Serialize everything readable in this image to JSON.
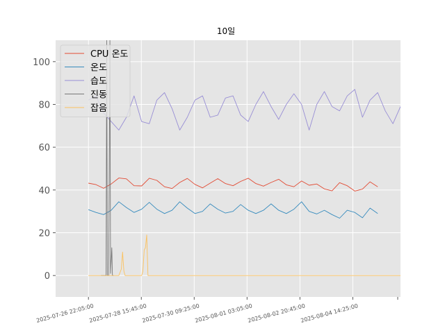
{
  "chart_data": {
    "type": "line",
    "title": "10일",
    "xlabel": "",
    "ylabel": "",
    "x_range": [
      "2025-07-25T20:13:00",
      "2025-08-06T04:00:00"
    ],
    "ylim": [
      -10,
      110
    ],
    "y_ticks": [
      0,
      20,
      40,
      60,
      80,
      100
    ],
    "x_ticks": [
      {
        "time": "2025-07-26T22:05:00",
        "label": "2025-07-26 22:05:00"
      },
      {
        "time": "2025-07-28T15:45:00",
        "label": "2025-07-28 15:45:00"
      },
      {
        "time": "2025-07-30T09:25:00",
        "label": "2025-07-30 09:25:00"
      },
      {
        "time": "2025-08-01T03:05:00",
        "label": "2025-08-01 03:05:00"
      },
      {
        "time": "2025-08-02T20:45:00",
        "label": "2025-08-02 20:45:00"
      },
      {
        "time": "2025-08-04T14:25:00",
        "label": "2025-08-04 14:25:00"
      }
    ],
    "grid": true,
    "legend_position": "top-left",
    "series": [
      {
        "name": "CPU 온도",
        "color": "#e24a33",
        "points": [
          [
            "2025-07-26T22:00:00",
            43.2
          ],
          [
            "2025-07-27T04:00:00",
            42.5
          ],
          [
            "2025-07-27T10:00:00",
            40.8
          ],
          [
            "2025-07-27T16:00:00",
            42.8
          ],
          [
            "2025-07-27T22:00:00",
            45.6
          ],
          [
            "2025-07-28T04:00:00",
            45.2
          ],
          [
            "2025-07-28T10:00:00",
            42.0
          ],
          [
            "2025-07-28T16:00:00",
            41.9
          ],
          [
            "2025-07-28T22:00:00",
            45.5
          ],
          [
            "2025-07-29T04:00:00",
            44.5
          ],
          [
            "2025-07-29T10:00:00",
            41.5
          ],
          [
            "2025-07-29T16:00:00",
            40.7
          ],
          [
            "2025-07-29T22:00:00",
            43.5
          ],
          [
            "2025-07-30T04:00:00",
            45.4
          ],
          [
            "2025-07-30T10:00:00",
            42.6
          ],
          [
            "2025-07-30T16:00:00",
            41.0
          ],
          [
            "2025-07-30T22:00:00",
            43.2
          ],
          [
            "2025-07-31T04:00:00",
            45.3
          ],
          [
            "2025-07-31T10:00:00",
            43.0
          ],
          [
            "2025-07-31T16:00:00",
            42.0
          ],
          [
            "2025-07-31T22:00:00",
            44.0
          ],
          [
            "2025-08-01T04:00:00",
            45.5
          ],
          [
            "2025-08-01T10:00:00",
            43.0
          ],
          [
            "2025-08-01T16:00:00",
            41.8
          ],
          [
            "2025-08-01T22:00:00",
            43.5
          ],
          [
            "2025-08-02T04:00:00",
            45.0
          ],
          [
            "2025-08-02T10:00:00",
            42.4
          ],
          [
            "2025-08-02T16:00:00",
            41.5
          ],
          [
            "2025-08-02T22:00:00",
            44.2
          ],
          [
            "2025-08-03T04:00:00",
            42.2
          ],
          [
            "2025-08-03T10:00:00",
            42.8
          ],
          [
            "2025-08-03T16:00:00",
            40.5
          ],
          [
            "2025-08-03T22:00:00",
            39.6
          ],
          [
            "2025-08-04T04:00:00",
            43.4
          ],
          [
            "2025-08-04T10:00:00",
            42.0
          ],
          [
            "2025-08-04T16:00:00",
            39.5
          ],
          [
            "2025-08-04T22:00:00",
            40.4
          ],
          [
            "2025-08-05T04:00:00",
            43.8
          ],
          [
            "2025-08-05T10:00:00",
            41.5
          ]
        ]
      },
      {
        "name": "온도",
        "color": "#348abd",
        "points": [
          [
            "2025-07-26T22:00:00",
            30.8
          ],
          [
            "2025-07-27T04:00:00",
            29.5
          ],
          [
            "2025-07-27T10:00:00",
            28.5
          ],
          [
            "2025-07-27T16:00:00",
            30.5
          ],
          [
            "2025-07-27T22:00:00",
            34.5
          ],
          [
            "2025-07-28T04:00:00",
            31.8
          ],
          [
            "2025-07-28T10:00:00",
            29.5
          ],
          [
            "2025-07-28T16:00:00",
            31.0
          ],
          [
            "2025-07-28T22:00:00",
            34.2
          ],
          [
            "2025-07-29T04:00:00",
            31.0
          ],
          [
            "2025-07-29T10:00:00",
            29.0
          ],
          [
            "2025-07-29T16:00:00",
            30.5
          ],
          [
            "2025-07-29T22:00:00",
            34.5
          ],
          [
            "2025-07-30T04:00:00",
            31.5
          ],
          [
            "2025-07-30T10:00:00",
            29.0
          ],
          [
            "2025-07-30T16:00:00",
            30.0
          ],
          [
            "2025-07-30T22:00:00",
            33.5
          ],
          [
            "2025-07-31T04:00:00",
            31.0
          ],
          [
            "2025-07-31T10:00:00",
            29.2
          ],
          [
            "2025-07-31T16:00:00",
            30.0
          ],
          [
            "2025-07-31T22:00:00",
            33.2
          ],
          [
            "2025-08-01T04:00:00",
            30.5
          ],
          [
            "2025-08-01T10:00:00",
            29.0
          ],
          [
            "2025-08-01T16:00:00",
            30.5
          ],
          [
            "2025-08-01T22:00:00",
            33.5
          ],
          [
            "2025-08-02T04:00:00",
            30.5
          ],
          [
            "2025-08-02T10:00:00",
            29.0
          ],
          [
            "2025-08-02T16:00:00",
            31.0
          ],
          [
            "2025-08-02T22:00:00",
            34.5
          ],
          [
            "2025-08-03T04:00:00",
            30.0
          ],
          [
            "2025-08-03T10:00:00",
            28.8
          ],
          [
            "2025-08-03T16:00:00",
            30.5
          ],
          [
            "2025-08-03T22:00:00",
            28.5
          ],
          [
            "2025-08-04T04:00:00",
            26.8
          ],
          [
            "2025-08-04T10:00:00",
            30.5
          ],
          [
            "2025-08-04T16:00:00",
            29.5
          ],
          [
            "2025-08-04T22:00:00",
            27.0
          ],
          [
            "2025-08-05T04:00:00",
            31.5
          ],
          [
            "2025-08-05T10:00:00",
            29.0
          ]
        ]
      },
      {
        "name": "습도",
        "color": "#988ed5",
        "points": [
          [
            "2025-07-26T22:00:00",
            82
          ],
          [
            "2025-07-27T04:00:00",
            84
          ],
          [
            "2025-07-27T10:00:00",
            76
          ],
          [
            "2025-07-27T16:00:00",
            72
          ],
          [
            "2025-07-27T22:00:00",
            68
          ],
          [
            "2025-07-28T04:00:00",
            74
          ],
          [
            "2025-07-28T10:00:00",
            84
          ],
          [
            "2025-07-28T16:00:00",
            72
          ],
          [
            "2025-07-28T22:00:00",
            71
          ],
          [
            "2025-07-29T04:00:00",
            82
          ],
          [
            "2025-07-29T10:00:00",
            85.5
          ],
          [
            "2025-07-29T16:00:00",
            78
          ],
          [
            "2025-07-29T22:00:00",
            68
          ],
          [
            "2025-07-30T04:00:00",
            74
          ],
          [
            "2025-07-30T10:00:00",
            82
          ],
          [
            "2025-07-30T16:00:00",
            84
          ],
          [
            "2025-07-30T22:00:00",
            74
          ],
          [
            "2025-07-31T04:00:00",
            75
          ],
          [
            "2025-07-31T10:00:00",
            83
          ],
          [
            "2025-07-31T16:00:00",
            84
          ],
          [
            "2025-07-31T22:00:00",
            75
          ],
          [
            "2025-08-01T04:00:00",
            72
          ],
          [
            "2025-08-01T10:00:00",
            80
          ],
          [
            "2025-08-01T16:00:00",
            86
          ],
          [
            "2025-08-01T22:00:00",
            79
          ],
          [
            "2025-08-02T04:00:00",
            73
          ],
          [
            "2025-08-02T10:00:00",
            80
          ],
          [
            "2025-08-02T16:00:00",
            85
          ],
          [
            "2025-08-02T22:00:00",
            80
          ],
          [
            "2025-08-03T04:00:00",
            68
          ],
          [
            "2025-08-03T10:00:00",
            80
          ],
          [
            "2025-08-03T16:00:00",
            86
          ],
          [
            "2025-08-03T22:00:00",
            79
          ],
          [
            "2025-08-04T04:00:00",
            77
          ],
          [
            "2025-08-04T10:00:00",
            84
          ],
          [
            "2025-08-04T16:00:00",
            87
          ],
          [
            "2025-08-04T22:00:00",
            74
          ],
          [
            "2025-08-05T04:00:00",
            82
          ],
          [
            "2025-08-05T10:00:00",
            85.5
          ],
          [
            "2025-08-05T16:00:00",
            77
          ],
          [
            "2025-08-05T22:00:00",
            71
          ],
          [
            "2025-08-06T04:00:00",
            79
          ]
        ]
      },
      {
        "name": "진동",
        "color": "#777777",
        "points": [
          [
            "2025-07-27T08:00:00",
            0
          ],
          [
            "2025-07-27T11:00:00",
            0
          ],
          [
            "2025-07-27T12:00:00",
            0
          ],
          [
            "2025-07-27T12:30:00",
            110
          ],
          [
            "2025-07-27T13:00:00",
            0
          ],
          [
            "2025-07-27T14:00:00",
            0
          ],
          [
            "2025-07-27T15:00:00",
            110
          ],
          [
            "2025-07-27T15:30:00",
            1
          ],
          [
            "2025-07-27T16:30:00",
            13
          ],
          [
            "2025-07-27T17:00:00",
            0
          ],
          [
            "2025-07-27T18:00:00",
            0
          ]
        ]
      },
      {
        "name": "잡음",
        "color": "#fbc15e",
        "points": [
          [
            "2025-07-26T22:00:00",
            0
          ],
          [
            "2025-07-27T22:00:00",
            0
          ],
          [
            "2025-07-28T00:00:00",
            3
          ],
          [
            "2025-07-28T01:00:00",
            11
          ],
          [
            "2025-07-28T02:00:00",
            2
          ],
          [
            "2025-07-28T03:00:00",
            0
          ],
          [
            "2025-07-28T16:00:00",
            0
          ],
          [
            "2025-07-28T17:00:00",
            2
          ],
          [
            "2025-07-28T18:00:00",
            12
          ],
          [
            "2025-07-28T19:00:00",
            13
          ],
          [
            "2025-07-28T20:00:00",
            19
          ],
          [
            "2025-07-28T21:00:00",
            0
          ],
          [
            "2025-08-06T04:00:00",
            0
          ]
        ]
      }
    ]
  }
}
